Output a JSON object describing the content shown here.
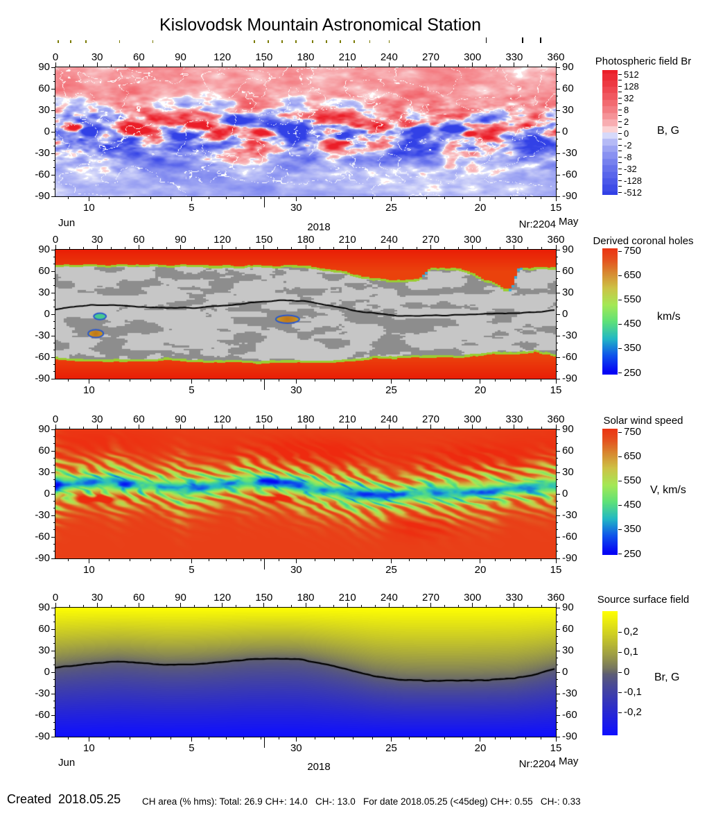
{
  "title": "Kislovodsk Mountain Astronomical Station",
  "months": {
    "left": "Jun",
    "year": "2018",
    "nr": "Nr:2204",
    "right": "May"
  },
  "footer": {
    "created": "Created  2018.05.25",
    "stats": "CH area (% hms): Total: 26.9 CH+: 14.0   CH-: 13.0   For date 2018.05.25 (<45deg) CH+: 0.55   CH-: 0.33"
  },
  "axes": {
    "lon_labels": [
      0,
      30,
      60,
      90,
      120,
      150,
      180,
      210,
      240,
      270,
      300,
      330,
      360
    ],
    "lat_labels": [
      90,
      60,
      30,
      0,
      -30,
      -60,
      -90
    ],
    "time": {
      "majors": [
        [
          "10",
          0.067
        ],
        [
          "5",
          0.272
        ],
        [
          "30",
          0.481
        ],
        [
          "25",
          0.671
        ],
        [
          "20",
          0.849
        ],
        [
          "15",
          1.0
        ]
      ],
      "subdiv": [
        5,
        6,
        5,
        5,
        5
      ],
      "month_tick_frac": 0.418
    }
  },
  "observation_ticks": {
    "olive_lons": [
      2,
      11,
      22,
      46,
      70,
      143,
      153,
      163,
      173,
      185,
      195,
      205,
      215,
      226,
      240
    ],
    "black_lons": [
      310,
      336,
      349
    ]
  },
  "chart_data": [
    {
      "id": "photospheric_field",
      "type": "heatmap",
      "colorbar_title": "Photospheric field Br",
      "unit": "B, G",
      "colorbar_ticks": [
        "512",
        "128",
        "32",
        "8",
        "2",
        "0",
        "-2",
        "-8",
        "-32",
        "-128",
        "-512"
      ],
      "palette": {
        "positive": "#eb1e28",
        "negative": "#3241e6",
        "zero": "#ffffff"
      },
      "x_axis": {
        "min": 0,
        "max": 360,
        "major_step": 30,
        "minor_step": 10
      },
      "y_axis": {
        "min": -90,
        "max": 90,
        "ticks": [
          90,
          60,
          30,
          0,
          -30,
          -60,
          -90
        ]
      },
      "spots": [
        [
          14,
          6,
          2.2,
          7,
          5
        ],
        [
          24,
          2,
          -2.4,
          8,
          6
        ],
        [
          57,
          4,
          2.0,
          9,
          6
        ],
        [
          96,
          -6,
          -1.6,
          9,
          6
        ],
        [
          128,
          16,
          -1.5,
          10,
          7
        ],
        [
          150,
          -2,
          1.6,
          7,
          5
        ],
        [
          172,
          2,
          -2.2,
          10,
          7
        ],
        [
          205,
          -6,
          -1.3,
          8,
          5
        ],
        [
          232,
          8,
          1.7,
          8,
          6
        ],
        [
          262,
          2,
          -1.5,
          8,
          6
        ],
        [
          287,
          4,
          -2.2,
          10,
          7
        ],
        [
          297,
          -3,
          1.5,
          6,
          4
        ],
        [
          322,
          -6,
          -1.2,
          7,
          5
        ],
        [
          340,
          10,
          1.3,
          6,
          4
        ]
      ]
    },
    {
      "id": "derived_coronal_holes",
      "type": "heatmap",
      "colorbar_title": "Derived coronal holes",
      "unit": "km/s",
      "colorbar_ticks": [
        "750",
        "650",
        "550",
        "450",
        "350",
        "250"
      ],
      "palette": {
        "hole": "#e83c0c",
        "quiet_light": "#c6c6c6",
        "quiet_dark": "#8d8d8d",
        "edge": "#9acd32"
      },
      "north_boundary": [
        [
          0,
          67
        ],
        [
          100,
          67
        ],
        [
          170,
          66
        ],
        [
          190,
          64
        ],
        [
          215,
          55
        ],
        [
          235,
          47
        ],
        [
          250,
          45
        ],
        [
          262,
          47
        ],
        [
          270,
          62
        ],
        [
          288,
          63
        ],
        [
          300,
          55
        ],
        [
          315,
          42
        ],
        [
          322,
          35
        ],
        [
          328,
          35
        ],
        [
          333,
          62
        ],
        [
          345,
          63
        ],
        [
          360,
          64
        ]
      ],
      "south_boundary": [
        [
          0,
          -62
        ],
        [
          40,
          -64
        ],
        [
          80,
          -63
        ],
        [
          120,
          -66
        ],
        [
          160,
          -67
        ],
        [
          200,
          -66
        ],
        [
          240,
          -60
        ],
        [
          270,
          -59
        ],
        [
          300,
          -58
        ],
        [
          318,
          -53
        ],
        [
          330,
          -56
        ],
        [
          345,
          -52
        ],
        [
          360,
          -58
        ]
      ],
      "neutral_line": [
        [
          0,
          7
        ],
        [
          25,
          13
        ],
        [
          50,
          12
        ],
        [
          75,
          9
        ],
        [
          100,
          9
        ],
        [
          125,
          13
        ],
        [
          145,
          17
        ],
        [
          165,
          20
        ],
        [
          185,
          17
        ],
        [
          205,
          9
        ],
        [
          225,
          2
        ],
        [
          245,
          -2
        ],
        [
          265,
          -2
        ],
        [
          285,
          -1
        ],
        [
          305,
          0
        ],
        [
          325,
          1
        ],
        [
          345,
          3
        ],
        [
          360,
          6
        ]
      ],
      "features": [
        {
          "lon": 32,
          "lat": -3,
          "rlon": 4.5,
          "rlat": 4.5,
          "kind": "cyan-green"
        },
        {
          "lon": 29,
          "lat": -27,
          "rlon": 5.5,
          "rlat": 5.5,
          "kind": "orange"
        },
        {
          "lon": 167,
          "lat": -7,
          "rlon": 8.5,
          "rlat": 5.5,
          "kind": "orange"
        }
      ]
    },
    {
      "id": "solar_wind_speed",
      "type": "heatmap",
      "colorbar_title": "Solar wind speed",
      "unit": "V, km/s",
      "colorbar_ticks": [
        "750",
        "650",
        "550",
        "450",
        "350",
        "250"
      ],
      "speed_range": [
        250,
        780
      ],
      "centerline": [
        [
          0,
          12
        ],
        [
          20,
          16
        ],
        [
          40,
          15
        ],
        [
          60,
          13
        ],
        [
          80,
          10
        ],
        [
          95,
          6
        ],
        [
          110,
          10
        ],
        [
          125,
          15
        ],
        [
          140,
          17
        ],
        [
          155,
          17
        ],
        [
          170,
          13
        ],
        [
          185,
          9
        ],
        [
          200,
          3
        ],
        [
          215,
          0
        ],
        [
          230,
          -2
        ],
        [
          245,
          -2
        ],
        [
          260,
          0
        ],
        [
          275,
          2
        ],
        [
          290,
          2
        ],
        [
          305,
          4
        ],
        [
          320,
          6
        ],
        [
          335,
          9
        ],
        [
          350,
          12
        ],
        [
          360,
          12
        ]
      ],
      "hot_spots": [
        [
          175,
          55,
          55,
          20,
          55
        ],
        [
          300,
          45,
          42,
          22,
          55
        ],
        [
          265,
          -45,
          22,
          16,
          45
        ],
        [
          30,
          70,
          60,
          25,
          25
        ]
      ],
      "slow_islands": [
        [
          33,
          -7,
          13,
          4,
          300
        ],
        [
          160,
          -6,
          12,
          4,
          260
        ]
      ]
    },
    {
      "id": "source_surface_field",
      "type": "heatmap",
      "colorbar_title": "Source surface field",
      "unit": "Br, G",
      "colorbar_ticks": [
        "0,2",
        "0,1",
        "0",
        "-0,1",
        "-0,2"
      ],
      "field_range": [
        -0.31,
        0.31
      ],
      "palette": {
        "positive": "#ffff00",
        "zero": "#61616e",
        "negative": "#0f0fff"
      },
      "neutral_line": [
        [
          0,
          6
        ],
        [
          20,
          11
        ],
        [
          45,
          15
        ],
        [
          60,
          13
        ],
        [
          80,
          10
        ],
        [
          100,
          11
        ],
        [
          120,
          14
        ],
        [
          140,
          18
        ],
        [
          160,
          19
        ],
        [
          175,
          18
        ],
        [
          190,
          13
        ],
        [
          210,
          4
        ],
        [
          230,
          -6
        ],
        [
          250,
          -11
        ],
        [
          270,
          -12
        ],
        [
          290,
          -12
        ],
        [
          310,
          -11
        ],
        [
          330,
          -9
        ],
        [
          345,
          -3
        ],
        [
          360,
          5
        ]
      ]
    }
  ]
}
